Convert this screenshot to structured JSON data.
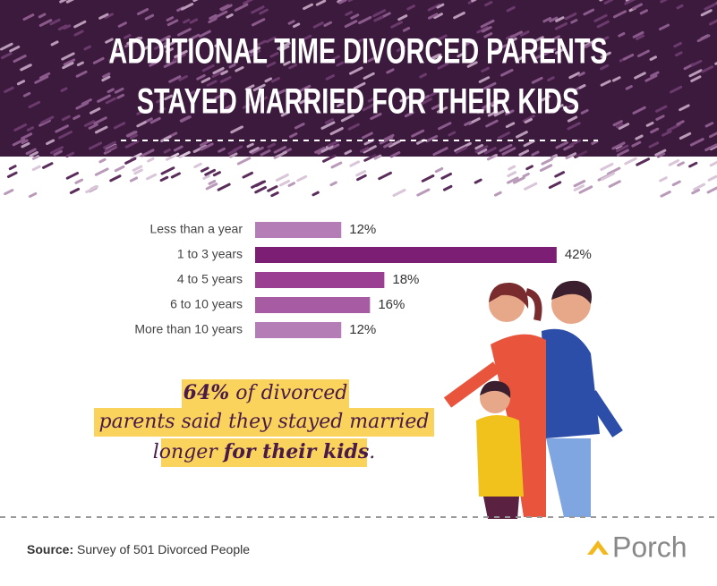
{
  "chart_data": {
    "type": "bar",
    "orientation": "horizontal",
    "title": [
      "ADDITIONAL TIME DIVORCED PARENTS",
      "STAYED MARRIED FOR THEIR KIDS"
    ],
    "categories": [
      "Less than a year",
      "1 to 3 years",
      "4 to 5 years",
      "6 to 10 years",
      "More than 10 years"
    ],
    "values": [
      12,
      42,
      18,
      16,
      12
    ],
    "value_labels": [
      "12%",
      "42%",
      "18%",
      "16%",
      "12%"
    ],
    "colors": [
      "#b47db6",
      "#7b1e74",
      "#9a3f92",
      "#a65ba2",
      "#b47db6"
    ],
    "callout": [
      [
        {
          "text": "64%",
          "bold": true
        },
        {
          "text": " of divorced",
          "bold": false
        }
      ],
      [
        {
          "text": "parents said they stayed married",
          "bold": false
        }
      ],
      [
        {
          "text": "longer ",
          "bold": false
        },
        {
          "text": "for their kids",
          "bold": true
        },
        {
          "text": ".",
          "bold": false
        }
      ]
    ],
    "source": {
      "label": "Source:",
      "text": " Survey of 501 Divorced People"
    },
    "logo": "Porch"
  }
}
